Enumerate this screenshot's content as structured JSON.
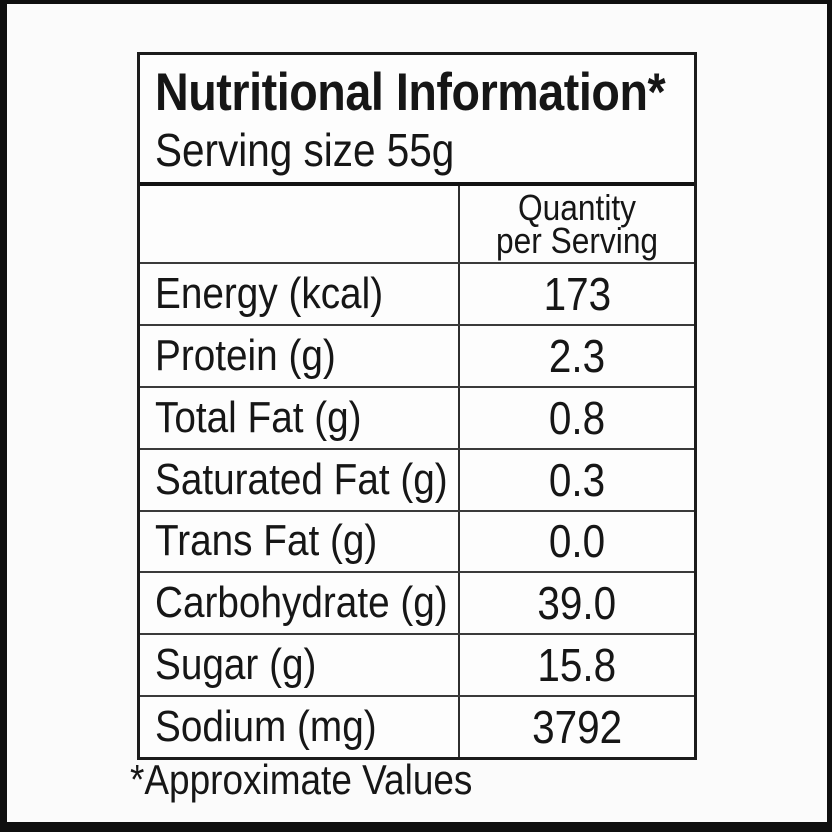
{
  "label": {
    "title": "Nutritional Information*",
    "serving_size": "Serving size 55g",
    "column_header": {
      "line1": "Quantity",
      "line2": "per Serving"
    },
    "rows": [
      {
        "name": "Energy (kcal)",
        "value": "173"
      },
      {
        "name": "Protein (g)",
        "value": "2.3"
      },
      {
        "name": "Total Fat (g)",
        "value": "0.8"
      },
      {
        "name": "Saturated Fat (g)",
        "value": "0.3"
      },
      {
        "name": "Trans Fat (g)",
        "value": "0.0"
      },
      {
        "name": "Carbohydrate (g)",
        "value": "39.0"
      },
      {
        "name": "Sugar (g)",
        "value": "15.8"
      },
      {
        "name": "Sodium (mg)",
        "value": "3792"
      }
    ],
    "footnote": "*Approximate Values",
    "colors": {
      "text": "#161616",
      "border": "#1c1c1c",
      "background": "#fbfbfb"
    }
  }
}
